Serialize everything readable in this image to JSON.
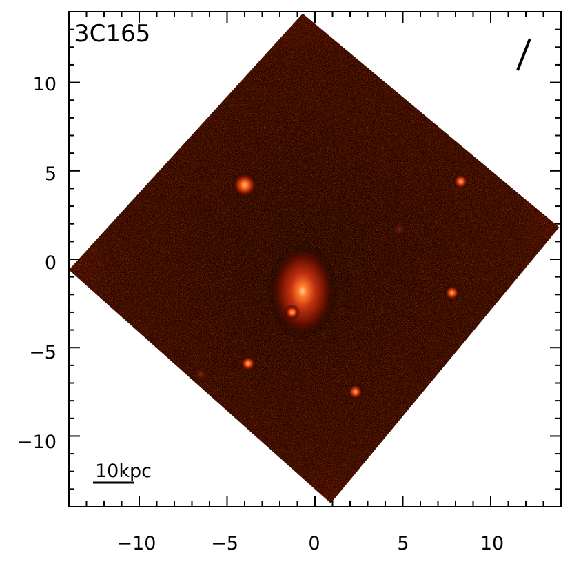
{
  "image": {
    "object_label": "3C165",
    "scale_bar_label": "10kpc",
    "x_axis": {
      "range": [
        -14,
        14
      ],
      "major_ticks": [
        -10,
        -5,
        0,
        5,
        10
      ],
      "tick_labels": [
        "−10",
        "−5",
        "0",
        "5",
        "10"
      ]
    },
    "y_axis": {
      "range": [
        -14,
        14
      ],
      "major_ticks": [
        -10,
        -5,
        0,
        5,
        10
      ],
      "tick_labels": [
        "−10",
        "−5",
        "0",
        "5",
        "10"
      ]
    },
    "colormap": {
      "low": "#000000",
      "mid": "#5a0c00",
      "high": "#ffb070",
      "frame": "#3a0500"
    },
    "sources": [
      {
        "type": "host-galaxy",
        "x": -0.7,
        "y": -1.8,
        "brightness": 1.0
      },
      {
        "type": "companion",
        "x": -4.0,
        "y": 4.2,
        "brightness": 0.6
      },
      {
        "type": "point-source",
        "x": 8.3,
        "y": 4.4,
        "brightness": 0.45
      },
      {
        "type": "point-source",
        "x": 7.8,
        "y": -1.9,
        "brightness": 0.45
      },
      {
        "type": "point-source",
        "x": -3.8,
        "y": -5.9,
        "brightness": 0.5
      },
      {
        "type": "point-source",
        "x": 2.3,
        "y": -7.5,
        "brightness": 0.45
      },
      {
        "type": "point-source",
        "x": -1.3,
        "y": -3.0,
        "brightness": 0.5
      },
      {
        "type": "faint-source",
        "x": -6.5,
        "y": -6.5,
        "brightness": 0.25
      },
      {
        "type": "faint-source",
        "x": 4.8,
        "y": 1.7,
        "brightness": 0.2
      }
    ],
    "field_corners_data_units": [
      [
        -0.7,
        13.9
      ],
      [
        13.9,
        1.8
      ],
      [
        0.9,
        -13.8
      ],
      [
        -14.0,
        -0.6
      ]
    ]
  }
}
